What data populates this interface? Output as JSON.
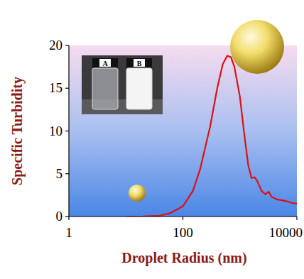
{
  "chart_data": {
    "type": "line",
    "x_label": "Droplet Radius (nm)",
    "y_label": "Specific Turbidity",
    "annotations": [
      "A",
      "B"
    ],
    "x": [
      10,
      20,
      40,
      60,
      100,
      150,
      200,
      300,
      400,
      500,
      600,
      700,
      800,
      1000,
      1200,
      1400,
      1600,
      1800,
      2000,
      2400,
      2800,
      3200,
      3600,
      4500,
      5500,
      6500,
      8000,
      10000
    ],
    "values": [
      0,
      0.02,
      0.1,
      0.4,
      1.2,
      3,
      5.5,
      10.5,
      15,
      17.8,
      18.8,
      18.6,
      17.5,
      14,
      9.5,
      6,
      4.5,
      4.6,
      4.2,
      3,
      2.6,
      2.9,
      2.3,
      2.0,
      1.9,
      1.8,
      1.6,
      1.5
    ],
    "color": "#e01010",
    "log": "x",
    "xlim": [
      1,
      10000
    ],
    "xticks": [
      1,
      100,
      10000
    ],
    "ylim": [
      0,
      20
    ],
    "yticks": [
      0,
      5,
      10,
      15,
      20
    ],
    "grid": false
  }
}
